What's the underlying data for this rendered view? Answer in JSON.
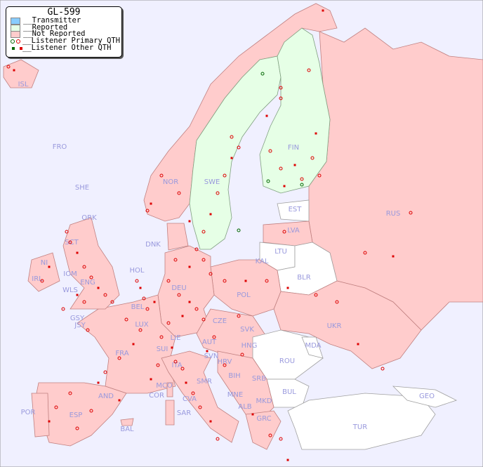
{
  "legend": {
    "title": "GL-599",
    "items": [
      {
        "label": "__Transmitter",
        "color": "#88ccff"
      },
      {
        "label": "__Reported",
        "color": "#e6ffe6"
      },
      {
        "label": "__Not Reported",
        "color": "#ffcccc"
      },
      {
        "label": "__Listener Primary QTH",
        "colors": [
          "#006600",
          "#dd0000"
        ],
        "marker": "circle"
      },
      {
        "label": "__Listener Other QTH",
        "colors": [
          "#006600",
          "#dd0000"
        ],
        "marker": "square"
      }
    ]
  },
  "colors": {
    "background": "#f0f0ff",
    "not_reported": "#ffcccc",
    "reported": "#e6ffe6",
    "no_data": "#ffffff",
    "label": "#9999dd",
    "listener": "#dd0000"
  },
  "countries": {
    "reported": [
      "SWE",
      "FIN"
    ],
    "labels": [
      "ISL",
      "FRO",
      "SHE",
      "ORK",
      "NOR",
      "SWE",
      "FIN",
      "EST",
      "LVA",
      "LTU",
      "KAL",
      "BLR",
      "RUS",
      "DNK",
      "HOL",
      "DEU",
      "POL",
      "IRL",
      "NI",
      "SCT",
      "IOM",
      "WLS",
      "ENG",
      "GSY",
      "JSY",
      "BEL",
      "LUX",
      "FRA",
      "SUI",
      "LIE",
      "AUT",
      "CZE",
      "SVK",
      "HNG",
      "UKR",
      "MDA",
      "ROU",
      "SVN",
      "HRV",
      "BIH",
      "SRB",
      "MNE",
      "ALB",
      "MKD",
      "GRC",
      "BUL",
      "TUR",
      "GEO",
      "ITA",
      "SMR",
      "MCO",
      "COR",
      "CVA",
      "SAR",
      "AND",
      "ESP",
      "POR",
      "BAL"
    ]
  }
}
